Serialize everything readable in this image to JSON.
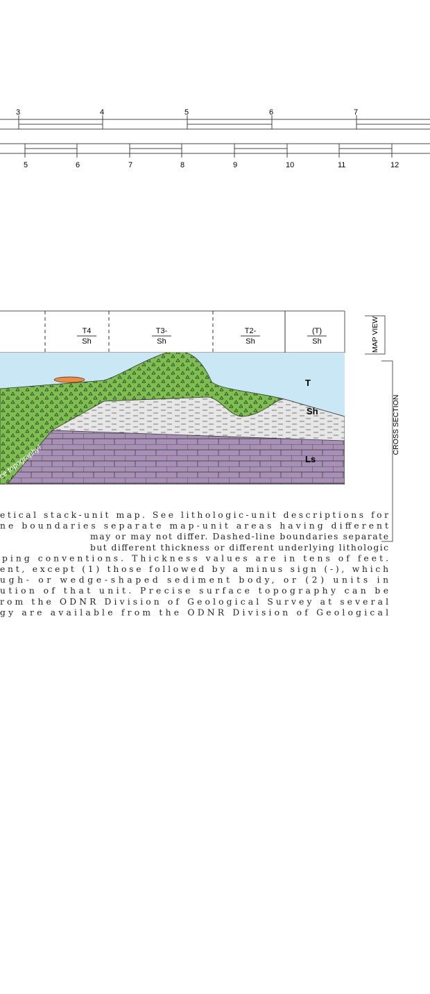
{
  "scale_top": {
    "labels": [
      "3",
      "4",
      "5",
      "6",
      "7"
    ]
  },
  "scale_bottom": {
    "labels": [
      "5",
      "6",
      "7",
      "8",
      "9",
      "10",
      "11",
      "12"
    ]
  },
  "map_view": {
    "cells": [
      {
        "top": "T4",
        "bottom": "Sh"
      },
      {
        "top": "T3-",
        "bottom": "Sh"
      },
      {
        "top": "T2-",
        "bottom": "Sh"
      },
      {
        "top": "(T)",
        "bottom": "Sh"
      }
    ],
    "side_label": "MAP VIEW"
  },
  "cross_section": {
    "side_label": "CROSS SECTION",
    "till": "T",
    "shale": "Sh",
    "limestone": "Ls",
    "topography_note": "ce topography!"
  },
  "caption": {
    "lines": [
      "etical stack-unit map. See lithologic-unit descriptions for",
      "ne boundaries separate map-unit areas having different",
      "may or may not differ. Dashed-line boundaries separate",
      "but different thickness or different underlying lithologic",
      "ping conventions. Thickness values are in tens of feet.",
      "ent, except (1) those followed by a minus sign (-), which",
      "ugh- or wedge-shaped sediment body, or (2) units in",
      "ution of that unit. Precise surface topography can be",
      "rom the ODNR Division of Geological Survey at several",
      "gy are available from the ODNR Division of Geological"
    ]
  }
}
